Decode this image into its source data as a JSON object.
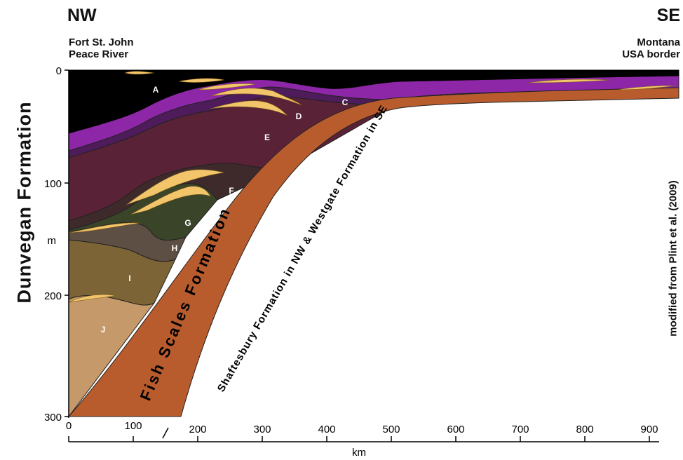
{
  "header": {
    "left_direction": "NW",
    "right_direction": "SE",
    "left_location_line1": "Fort St. John",
    "left_location_line2": "Peace River",
    "right_location_line1": "Montana",
    "right_location_line2": "USA border"
  },
  "y_axis": {
    "title": "Dunvegan Formation",
    "unit": "m",
    "ticks": [
      "0",
      "100",
      "200",
      "300"
    ]
  },
  "x_axis": {
    "unit": "km",
    "ticks": [
      "0",
      "100",
      "200",
      "300",
      "400",
      "500",
      "600",
      "700",
      "800",
      "900"
    ]
  },
  "credit": "modified from Plint et al. (2009)",
  "units": {
    "A": "A",
    "B": "C",
    "C": "D",
    "D": "E",
    "E": "F",
    "F": "G",
    "G": "H",
    "H": "I",
    "I": "J"
  },
  "formations": {
    "fish_scales": "Fish Scales Formation",
    "shaftesbury": "Shaftesbury Formation in NW & Westgate Formation in SE"
  },
  "colors": {
    "unit_A": "#000000",
    "unit_C": "#8e26a8",
    "unit_D": "#4e1c5a",
    "unit_E": "#5a2236",
    "unit_F": "#3e2a2a",
    "unit_G": "#3a4429",
    "unit_H": "#5e4f44",
    "unit_I": "#7c6436",
    "unit_J": "#c6996a",
    "fish_scales": "#b85c2e",
    "sand_lens": "#f2c56a"
  }
}
